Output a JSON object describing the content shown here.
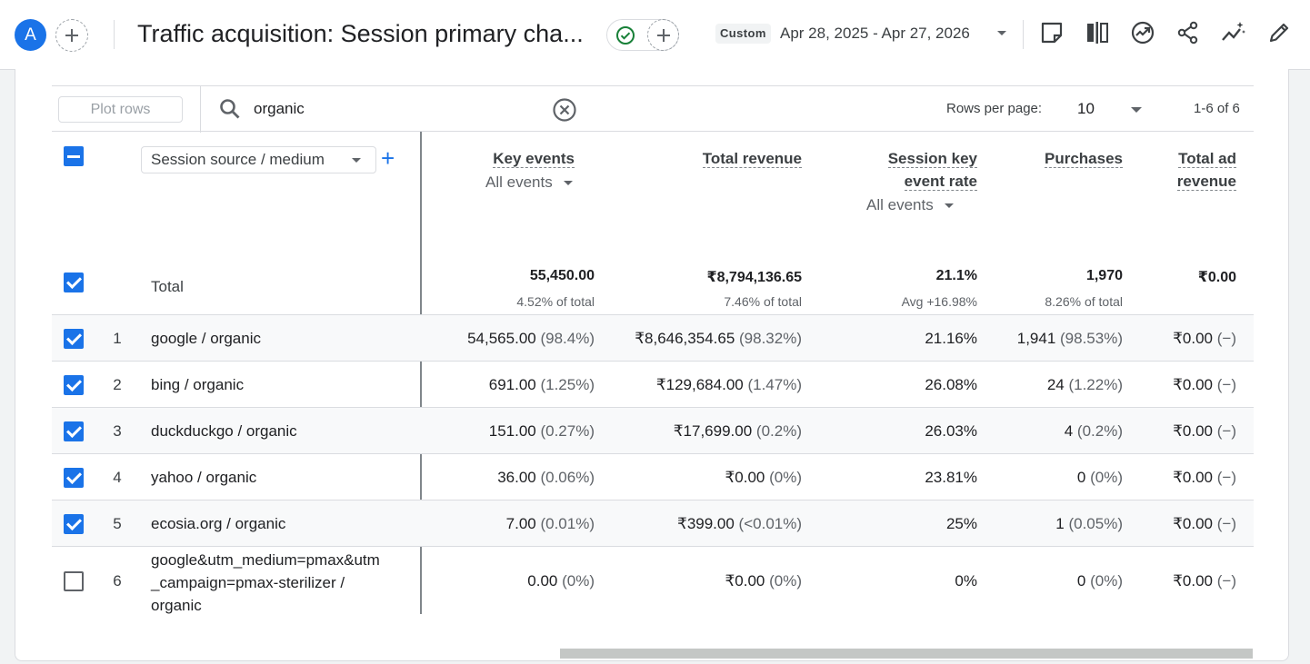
{
  "header": {
    "avatar_letter": "A",
    "title": "Traffic acquisition: Session primary cha...",
    "date_chip": "Custom",
    "date_range": "Apr 28, 2025 - Apr 27, 2026",
    "icons": [
      "add-comparison-icon",
      "check-circle-icon",
      "add-icon",
      "customize-report-icon",
      "compare-icon",
      "insights-icon",
      "share-icon",
      "trending-icon",
      "edit-icon"
    ]
  },
  "toolbar": {
    "plot_rows": "Plot rows",
    "search_value": "organic",
    "rows_per_page_label": "Rows per page:",
    "rows_per_page": "10",
    "pagination": "1-6 of 6"
  },
  "table": {
    "dimension": "Session source / medium",
    "columns": {
      "key_events": "Key events",
      "key_events_filter": "All events",
      "total_revenue": "Total revenue",
      "session_key_event_rate_1": "Session key",
      "session_key_event_rate_2": "event rate",
      "rate_filter": "All events",
      "purchases": "Purchases",
      "total_ad_revenue_1": "Total ad",
      "total_ad_revenue_2": "revenue"
    },
    "total": {
      "label": "Total",
      "key_events": "55,450.00",
      "key_events_sub": "4.52% of total",
      "total_revenue": "₹8,794,136.65",
      "total_revenue_sub": "7.46% of total",
      "rate": "21.1%",
      "rate_sub": "Avg +16.98%",
      "purchases": "1,970",
      "purchases_sub": "8.26% of total",
      "ad_revenue": "₹0.00"
    },
    "rows": [
      {
        "num": "1",
        "dim": "google / organic",
        "ke": "54,565.00",
        "ke_pct": "(98.4%)",
        "rev": "₹8,646,354.65",
        "rev_pct": "(98.32%)",
        "rate": "21.16%",
        "pur": "1,941",
        "pur_pct": "(98.53%)",
        "ad": "₹0.00",
        "ad_pct": "(−)",
        "checked": true
      },
      {
        "num": "2",
        "dim": "bing / organic",
        "ke": "691.00",
        "ke_pct": "(1.25%)",
        "rev": "₹129,684.00",
        "rev_pct": "(1.47%)",
        "rate": "26.08%",
        "pur": "24",
        "pur_pct": "(1.22%)",
        "ad": "₹0.00",
        "ad_pct": "(−)",
        "checked": true
      },
      {
        "num": "3",
        "dim": "duckduckgo / organic",
        "ke": "151.00",
        "ke_pct": "(0.27%)",
        "rev": "₹17,699.00",
        "rev_pct": "(0.2%)",
        "rate": "26.03%",
        "pur": "4",
        "pur_pct": "(0.2%)",
        "ad": "₹0.00",
        "ad_pct": "(−)",
        "checked": true
      },
      {
        "num": "4",
        "dim": "yahoo / organic",
        "ke": "36.00",
        "ke_pct": "(0.06%)",
        "rev": "₹0.00",
        "rev_pct": "(0%)",
        "rate": "23.81%",
        "pur": "0",
        "pur_pct": "(0%)",
        "ad": "₹0.00",
        "ad_pct": "(−)",
        "checked": true
      },
      {
        "num": "5",
        "dim": "ecosia.org / organic",
        "ke": "7.00",
        "ke_pct": "(0.01%)",
        "rev": "₹399.00",
        "rev_pct": "(<0.01%)",
        "rate": "25%",
        "pur": "1",
        "pur_pct": "(0.05%)",
        "ad": "₹0.00",
        "ad_pct": "(−)",
        "checked": true
      },
      {
        "num": "6",
        "dim_lines": [
          "google&utm_medium=pmax&utm",
          "_campaign=pmax-sterilizer /",
          "organic"
        ],
        "ke": "0.00",
        "ke_pct": "(0%)",
        "rev": "₹0.00",
        "rev_pct": "(0%)",
        "rate": "0%",
        "pur": "0",
        "pur_pct": "(0%)",
        "ad": "₹0.00",
        "ad_pct": "(−)",
        "checked": false
      }
    ]
  },
  "colors": {
    "accent": "#1a73e8",
    "success": "#188038"
  }
}
